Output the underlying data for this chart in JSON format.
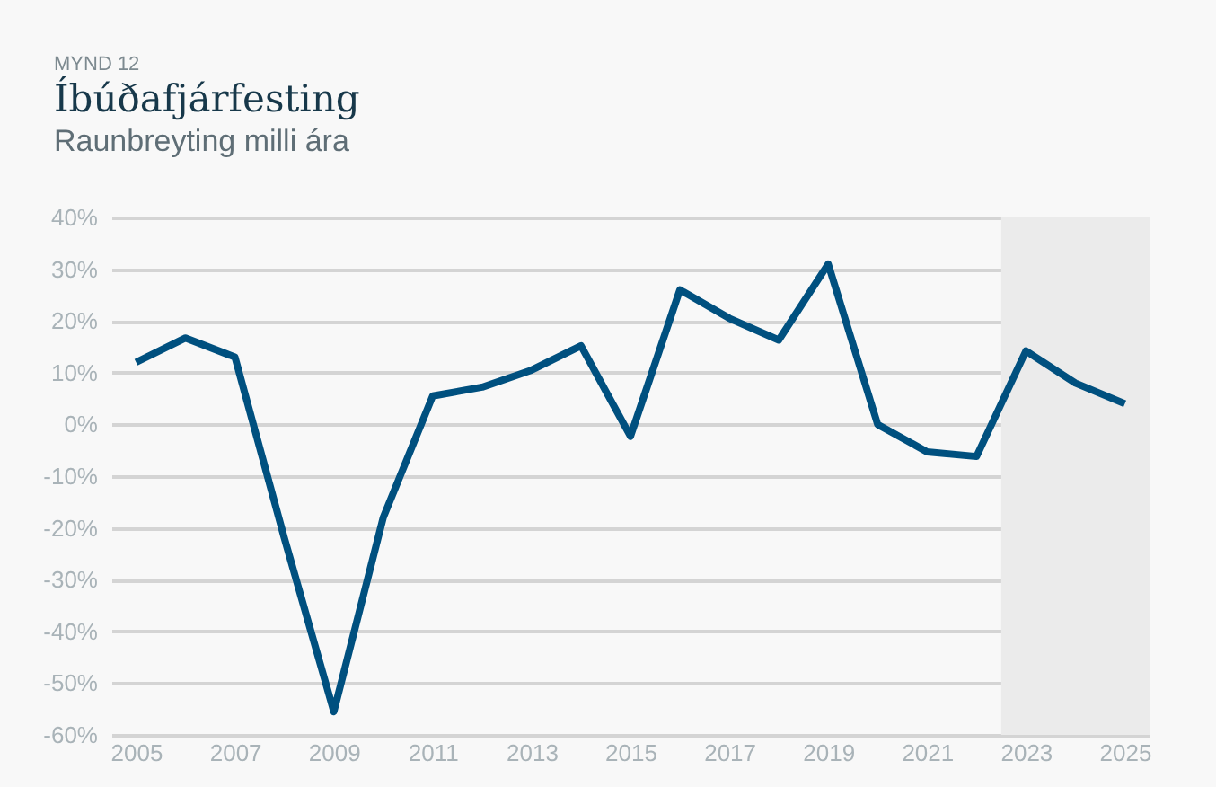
{
  "chart_data": {
    "type": "line",
    "title": "Íbúðafjárfesting",
    "subtitle": "Raunbreyting milli ára",
    "annotations": [
      "MYND 12"
    ],
    "x": [
      2005,
      2006,
      2007,
      2008,
      2009,
      2010,
      2011,
      2012,
      2013,
      2014,
      2015,
      2016,
      2017,
      2018,
      2019,
      2020,
      2021,
      2022,
      2023,
      2024,
      2025
    ],
    "series": [
      {
        "color": "#00507f",
        "values": [
          12,
          16.7,
          13,
          -22,
          -55.5,
          -18,
          5.5,
          7.2,
          10.5,
          15.2,
          -2.3,
          26,
          20.5,
          16.3,
          31,
          0,
          -5.3,
          -6.2,
          14.2,
          8,
          4
        ]
      }
    ],
    "xlim": [
      2004.5,
      2025.5
    ],
    "xticks": [
      2005,
      2007,
      2009,
      2011,
      2013,
      2015,
      2017,
      2019,
      2021,
      2023,
      2025
    ],
    "ylim": [
      -60,
      40
    ],
    "yticks": [
      {
        "value": -60,
        "label": "-60%"
      },
      {
        "value": -50,
        "label": "-50%"
      },
      {
        "value": -40,
        "label": "-40%"
      },
      {
        "value": -30,
        "label": "-30%"
      },
      {
        "value": -20,
        "label": "-20%"
      },
      {
        "value": -10,
        "label": "-10%"
      },
      {
        "value": 0,
        "label": "0%"
      },
      {
        "value": 10,
        "label": "10%"
      },
      {
        "value": 20,
        "label": "20%"
      },
      {
        "value": 30,
        "label": "30%"
      },
      {
        "value": 40,
        "label": "40%"
      }
    ],
    "bands": [
      {
        "axis": "x",
        "from": 2022.5,
        "to": 2025.5,
        "color": "#ebebeb"
      }
    ],
    "grid": "y",
    "marker": "none",
    "line_style": "solid"
  }
}
